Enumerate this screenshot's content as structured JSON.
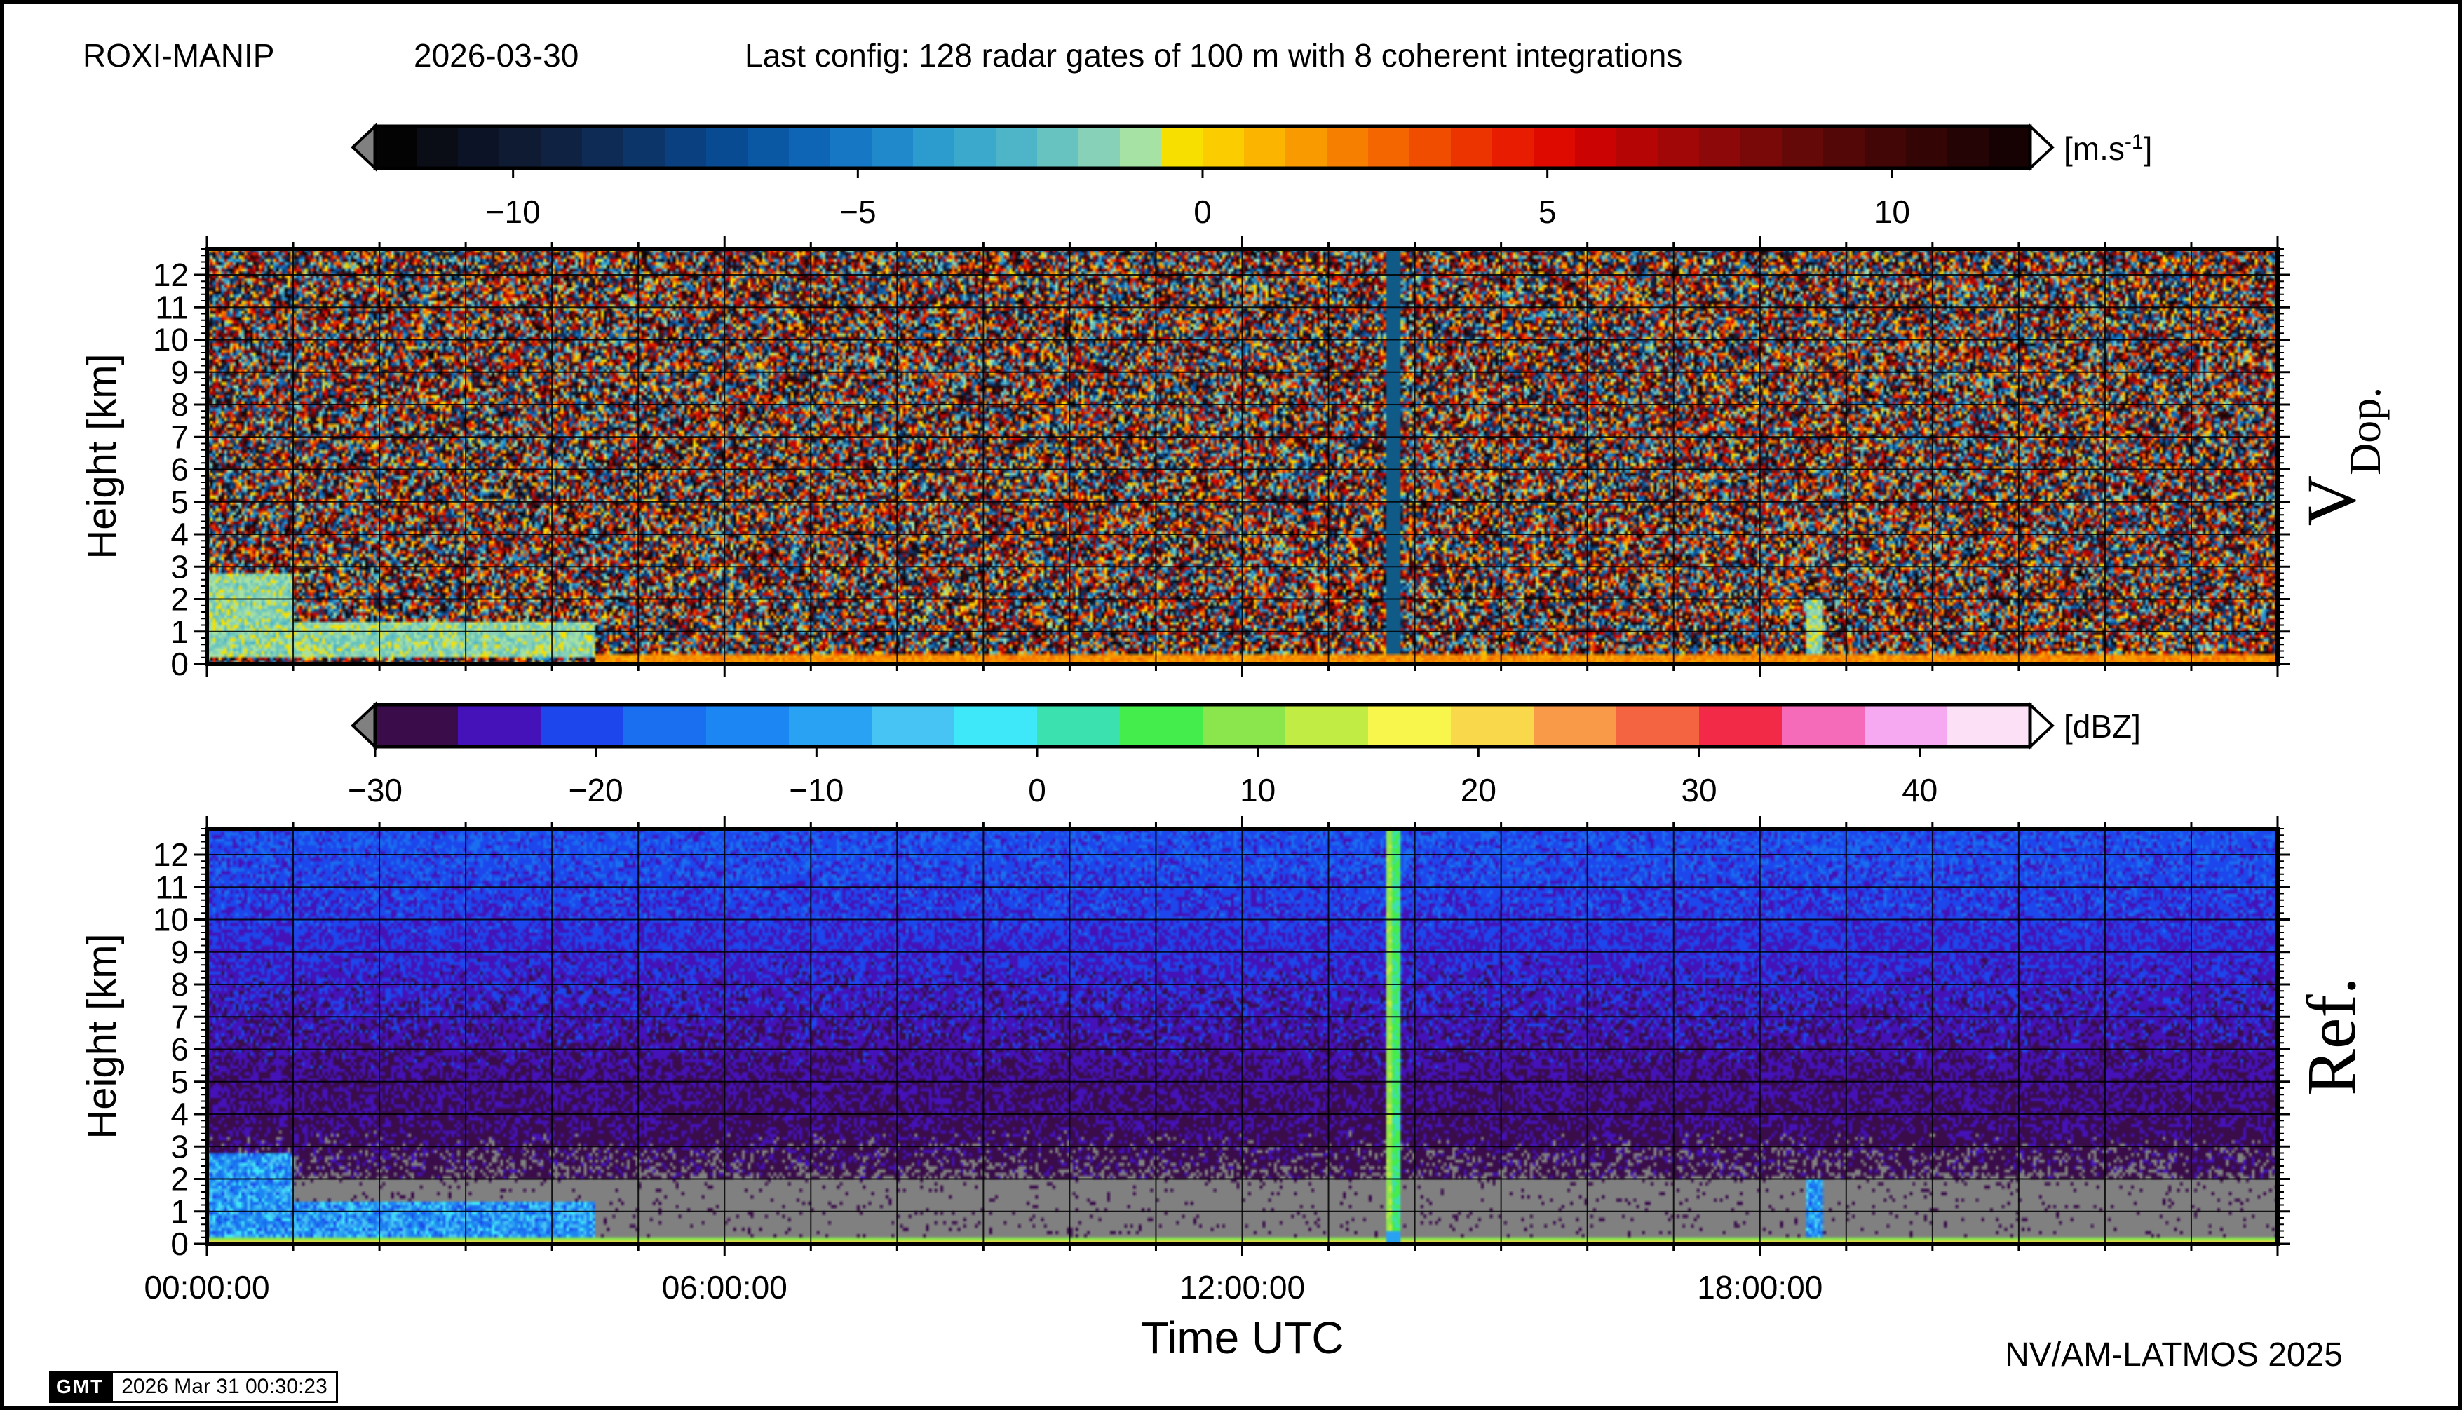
{
  "header": {
    "site": "ROXI-MANIP",
    "date": "2026-03-30",
    "config": "Last config: 128 radar gates of 100 m with 8 coherent integrations"
  },
  "footer": {
    "credit": "NV/AM-LATMOS 2025",
    "gmt_logo_text": "GMT",
    "timestamp": "2026 Mar 31 00:30:23"
  },
  "chart_data": [
    {
      "type": "heatmap",
      "panel_label": "V",
      "panel_label_sub": "Dop.",
      "ylabel": "Height [km]",
      "ylim": [
        0,
        12.8
      ],
      "yticks": [
        "0",
        "1",
        "2",
        "3",
        "4",
        "5",
        "6",
        "7",
        "8",
        "9",
        "10",
        "11",
        "12"
      ],
      "xlim_hours": [
        0,
        24
      ],
      "grid": true,
      "colorbar": {
        "unit_base": "[m.s",
        "unit_exp": "-1",
        "unit_close": "]",
        "range": [
          -12,
          12
        ],
        "ticks": [
          "−10",
          "−5",
          "0",
          "5",
          "10"
        ],
        "tick_values": [
          -10,
          -5,
          0,
          5,
          10
        ],
        "colors": [
          "#030303",
          "#0a0c16",
          "#0d1326",
          "#0f1a33",
          "#0f2241",
          "#0e2b55",
          "#0c3569",
          "#0a4080",
          "#094b92",
          "#0a57a4",
          "#0e65b5",
          "#1677c4",
          "#2089cc",
          "#2c9bce",
          "#3aa9cc",
          "#4db5c7",
          "#66c3c0",
          "#86d1b7",
          "#a6e2a4",
          "#f7e000",
          "#fbcc00",
          "#fbb400",
          "#f99a00",
          "#f77f00",
          "#f46600",
          "#f04d00",
          "#ec3400",
          "#e71c00",
          "#de0a00",
          "#cc0303",
          "#b60505",
          "#a10707",
          "#8d0808",
          "#790808",
          "#650808",
          "#540707",
          "#430606",
          "#330505",
          "#240404",
          "#160202"
        ]
      },
      "regions": {
        "noise_top_km": 12.8,
        "low_echo": [
          {
            "t0": 0.0,
            "t1": 1.0,
            "h0": 0.2,
            "h1": 2.8
          },
          {
            "t0": 1.0,
            "t1": 4.5,
            "h0": 0.2,
            "h1": 1.3
          },
          {
            "t0": 4.5,
            "t1": 24.0,
            "h0": 0.05,
            "h1": 0.3
          },
          {
            "t0": 18.55,
            "t1": 18.75,
            "h0": 0.2,
            "h1": 2.0
          }
        ],
        "dropout_column": {
          "t0": 13.68,
          "t1": 13.82
        }
      }
    },
    {
      "type": "heatmap",
      "panel_label": "Ref.",
      "ylabel": "Height [km]",
      "xlabel": "Time UTC",
      "ylim": [
        0,
        12.8
      ],
      "yticks": [
        "0",
        "1",
        "2",
        "3",
        "4",
        "5",
        "6",
        "7",
        "8",
        "9",
        "10",
        "11",
        "12"
      ],
      "xlim_hours": [
        0,
        24
      ],
      "xticks": [
        "00:00:00",
        "06:00:00",
        "12:00:00",
        "18:00:00"
      ],
      "xtick_hours": [
        0,
        6,
        12,
        18
      ],
      "grid": true,
      "colorbar": {
        "unit": "[dBZ]",
        "range": [
          -30,
          45
        ],
        "ticks": [
          "−30",
          "−20",
          "−10",
          "0",
          "10",
          "20",
          "30",
          "40"
        ],
        "tick_values": [
          -30,
          -20,
          -10,
          0,
          10,
          20,
          30,
          40
        ],
        "colors": [
          "#3a0c4a",
          "#4412b8",
          "#1d46ec",
          "#1a6ef0",
          "#1c86f2",
          "#2aa2f3",
          "#48c4f4",
          "#3ee8f8",
          "#3be2b0",
          "#44ec4c",
          "#8ae64c",
          "#c0ec44",
          "#f8f54c",
          "#fad84c",
          "#f99a48",
          "#f56440",
          "#f22a48",
          "#f66aba",
          "#f6a8f0",
          "#fce0f6"
        ]
      },
      "regions": {
        "background_low_dbz": -22,
        "background_high_dbz": -25,
        "no_signal_band_km": [
          0.2,
          2.0
        ],
        "surface_band_km": [
          0.0,
          0.2
        ],
        "rain_column": {
          "t0": 13.68,
          "t1": 13.82
        },
        "low_echo": [
          {
            "t0": 0.0,
            "t1": 1.0,
            "h0": 0.2,
            "h1": 2.8
          },
          {
            "t0": 1.0,
            "t1": 4.5,
            "h0": 0.2,
            "h1": 1.3
          },
          {
            "t0": 18.55,
            "t1": 18.75,
            "h0": 0.2,
            "h1": 2.0
          }
        ]
      }
    }
  ]
}
